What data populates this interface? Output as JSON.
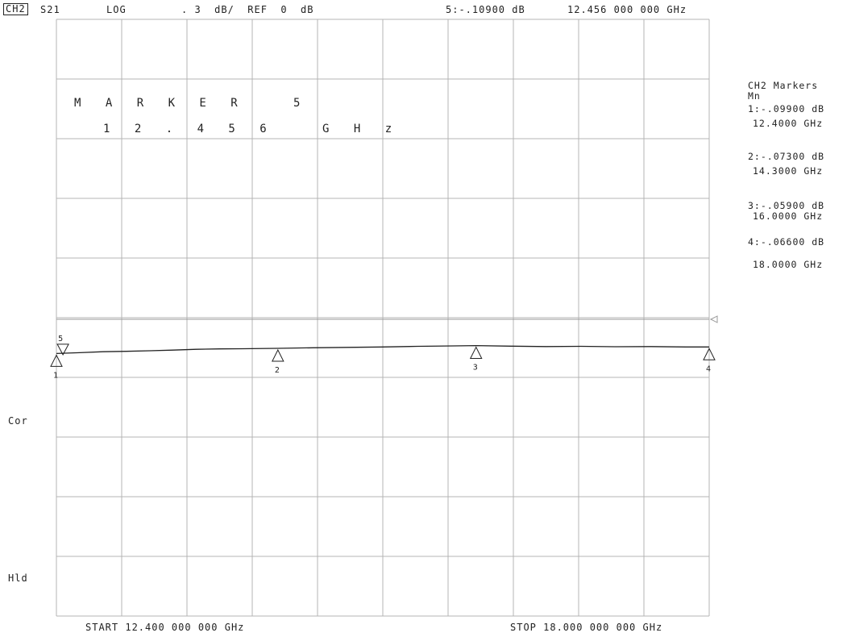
{
  "header": {
    "channel": "CH2",
    "param": "S21",
    "format": "LOG",
    "scale": ". 3  dB/  REF  0  dB",
    "active_marker_readout": "5:-.10900 dB",
    "active_marker_freq": "12.456 000 000 GHz"
  },
  "marker_annotation": {
    "title": "M A R K E R   5",
    "freq": "1 2 . 4 5 6   G H z"
  },
  "marker_panel": {
    "title": "CH2 Markers",
    "mode": "Mn",
    "m1_value": "1:-.09900 dB",
    "m1_freq": "12.4000 GHz",
    "m2_value": "2:-.07300 dB",
    "m2_freq": "14.3000 GHz",
    "m3_value": "3:-.05900 dB",
    "m3_freq": "16.0000 GHz",
    "m4_value": "4:-.06600 dB",
    "m4_freq": "18.0000 GHz"
  },
  "side_labels": {
    "cor": "Cor",
    "hld": "Hld"
  },
  "footer": {
    "start": "START 12.400 000 000 GHz",
    "stop": "STOP 18.000 000 000 GHz"
  },
  "chart_data": {
    "type": "line",
    "title": "",
    "xlabel": "",
    "ylabel": "",
    "x_unit": "GHz",
    "y_unit": "dB",
    "xlim": [
      12.4,
      18.0
    ],
    "ylim": [
      -1.5,
      1.5
    ],
    "ref_level": 0,
    "divisions": {
      "x": 10,
      "y": 10
    },
    "grid": true,
    "series": [
      {
        "x": [
          12.4,
          12.6,
          12.8,
          13.0,
          13.2,
          13.4,
          13.6,
          13.8,
          14.0,
          14.3,
          14.6,
          14.9,
          15.2,
          15.5,
          15.8,
          16.0,
          16.3,
          16.6,
          16.9,
          17.2,
          17.5,
          17.8,
          18.0
        ],
        "y": [
          -0.099,
          -0.095,
          -0.09,
          -0.088,
          -0.085,
          -0.082,
          -0.078,
          -0.076,
          -0.075,
          -0.073,
          -0.07,
          -0.068,
          -0.066,
          -0.063,
          -0.061,
          -0.059,
          -0.062,
          -0.064,
          -0.063,
          -0.065,
          -0.064,
          -0.066,
          -0.066
        ]
      }
    ],
    "markers": [
      {
        "id": "1",
        "x": 12.4,
        "y": -0.099
      },
      {
        "id": "2",
        "x": 14.3,
        "y": -0.073
      },
      {
        "id": "3",
        "x": 16.0,
        "y": -0.059
      },
      {
        "id": "4",
        "x": 18.0,
        "y": -0.066
      },
      {
        "id": "5",
        "x": 12.456,
        "y": -0.109
      }
    ]
  }
}
